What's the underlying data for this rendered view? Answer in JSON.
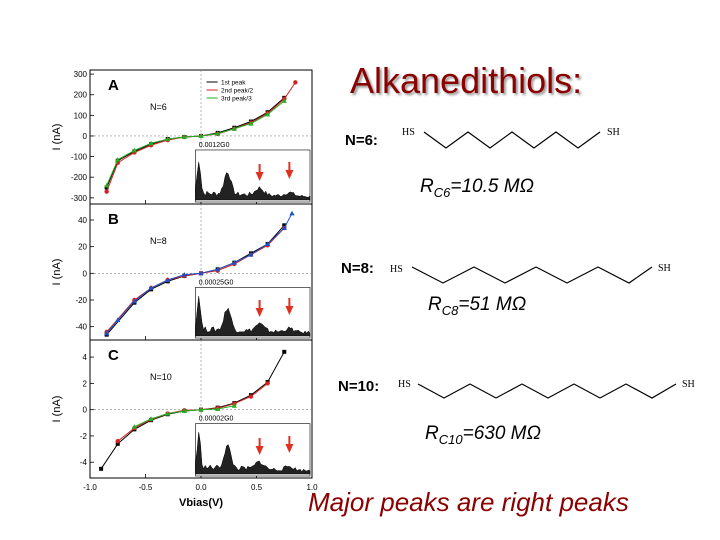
{
  "slide": {
    "title": "Alkanedithiols:",
    "footer": "Major peaks are right peaks"
  },
  "molecules": [
    {
      "n_label": "N=6:",
      "left": "HS",
      "right": "SH",
      "r_prefix": "R",
      "r_sub": "C6",
      "r_value": "=10.5 MΩ"
    },
    {
      "n_label": "N=8:",
      "left": "HS",
      "right": "SH",
      "r_prefix": "R",
      "r_sub": "C8",
      "r_value": "=51 MΩ"
    },
    {
      "n_label": "N=10:",
      "left": "HS",
      "right": "SH",
      "r_prefix": "R",
      "r_sub": "C10",
      "r_value": "=630 MΩ"
    }
  ],
  "chart_data": [
    {
      "type": "line",
      "panel_label": "A",
      "annotation": "N=6",
      "ylabel": "I (nA)",
      "yticks": [
        "300",
        "200",
        "100",
        "0",
        "-100",
        "-200",
        "-300"
      ],
      "ylim": [
        -330,
        320
      ],
      "legend": [
        "1st peak",
        "2nd peak/2",
        "3rd peak/3"
      ],
      "inset_label": "0.0012G0",
      "series": [
        {
          "name": "1st peak",
          "color": "#000000",
          "x": [
            -0.85,
            -0.75,
            -0.6,
            -0.45,
            -0.3,
            -0.15,
            0,
            0.15,
            0.3,
            0.45,
            0.6,
            0.75
          ],
          "y": [
            -250,
            -120,
            -75,
            -40,
            -15,
            -5,
            0,
            15,
            40,
            70,
            115,
            185
          ]
        },
        {
          "name": "2nd peak/2",
          "color": "#d42020",
          "x": [
            -0.85,
            -0.75,
            -0.6,
            -0.45,
            -0.3,
            -0.15,
            0,
            0.15,
            0.3,
            0.45,
            0.6,
            0.75,
            0.85
          ],
          "y": [
            -270,
            -130,
            -80,
            -45,
            -20,
            -5,
            0,
            10,
            35,
            65,
            110,
            180,
            260
          ]
        },
        {
          "name": "3rd peak/3",
          "color": "#22b022",
          "x": [
            -0.85,
            -0.75,
            -0.6,
            -0.45,
            -0.3,
            -0.15,
            0,
            0.15,
            0.3,
            0.45,
            0.6,
            0.75
          ],
          "y": [
            -240,
            -115,
            -70,
            -35,
            -15,
            -5,
            0,
            12,
            35,
            60,
            105,
            170
          ]
        }
      ]
    },
    {
      "type": "line",
      "panel_label": "B",
      "annotation": "N=8",
      "ylabel": "I (nA)",
      "yticks": [
        "40",
        "20",
        "0",
        "-20",
        "-40"
      ],
      "ylim": [
        -50,
        52
      ],
      "inset_label": "0.00025G0",
      "series": [
        {
          "name": "",
          "color": "#000000",
          "x": [
            -0.85,
            -0.6,
            -0.45,
            -0.3,
            -0.15,
            0,
            0.15,
            0.3,
            0.45,
            0.6,
            0.75
          ],
          "y": [
            -46,
            -22,
            -12,
            -6,
            -2,
            0,
            3,
            8,
            15,
            22,
            36
          ]
        },
        {
          "name": "",
          "color": "#d42020",
          "x": [
            -0.85,
            -0.6,
            -0.45,
            -0.3,
            -0.15,
            0,
            0.15,
            0.3,
            0.45,
            0.6,
            0.75
          ],
          "y": [
            -44,
            -20,
            -11,
            -5,
            -2,
            0,
            2,
            7,
            14,
            21,
            34
          ]
        },
        {
          "name": "",
          "color": "#2050c8",
          "x": [
            -0.85,
            -0.75,
            -0.6,
            -0.45,
            -0.3,
            -0.15,
            0,
            0.15,
            0.3,
            0.45,
            0.6,
            0.75,
            0.82
          ],
          "y": [
            -45,
            -35,
            -21,
            -11,
            -5,
            -1,
            0,
            3,
            8,
            14,
            22,
            34,
            45
          ]
        }
      ]
    },
    {
      "type": "line",
      "panel_label": "C",
      "annotation": "N=10",
      "ylabel": "I (nA)",
      "yticks": [
        "4",
        "2",
        "0",
        "-2",
        "-4"
      ],
      "ylim": [
        -5.2,
        5.3
      ],
      "xlabel": "Vbias(V)",
      "xticks": [
        "-1.0",
        "-0.5",
        "0.0",
        "0.5",
        "1.0"
      ],
      "xlim": [
        -1.0,
        1.0
      ],
      "inset_label": "0.00002G0",
      "series": [
        {
          "name": "",
          "color": "#000000",
          "x": [
            -0.9,
            -0.75,
            -0.6,
            -0.45,
            -0.3,
            -0.15,
            0,
            0.15,
            0.3,
            0.45,
            0.6,
            0.75
          ],
          "y": [
            -4.5,
            -2.6,
            -1.5,
            -0.8,
            -0.35,
            -0.1,
            0,
            0.15,
            0.5,
            1.1,
            2.1,
            4.4
          ]
        },
        {
          "name": "",
          "color": "#d42020",
          "x": [
            -0.75,
            -0.6,
            -0.45,
            -0.3,
            -0.15,
            0,
            0.15,
            0.3,
            0.45,
            0.6
          ],
          "y": [
            -2.4,
            -1.4,
            -0.75,
            -0.3,
            -0.05,
            0,
            0.1,
            0.45,
            1.0,
            2.0
          ]
        },
        {
          "name": "",
          "color": "#22b022",
          "x": [
            -0.6,
            -0.45,
            -0.3,
            -0.15,
            0,
            0.15,
            0.3
          ],
          "y": [
            -1.3,
            -0.7,
            -0.3,
            -0.1,
            0,
            0.05,
            0.3
          ]
        }
      ]
    }
  ]
}
